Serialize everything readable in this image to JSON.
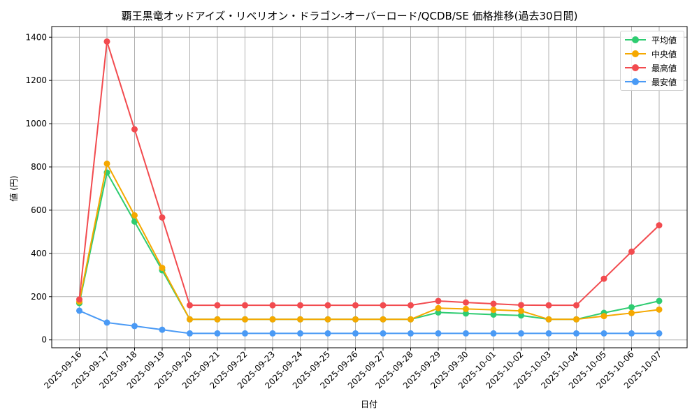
{
  "chart_data": {
    "type": "line",
    "title": "覇王黒竜オッドアイズ・リベリオン・ドラゴン-オーバーロード/QCDB/SE 価格推移(過去30日間)",
    "xlabel": "日付",
    "ylabel": "値 (円)",
    "ylim": [
      -40,
      1450
    ],
    "yticks": [
      0,
      200,
      400,
      600,
      800,
      1000,
      1200,
      1400
    ],
    "grid": true,
    "legend_position": "upper right",
    "categories": [
      "2025-09-16",
      "2025-09-17",
      "2025-09-18",
      "2025-09-19",
      "2025-09-20",
      "2025-09-21",
      "2025-09-22",
      "2025-09-23",
      "2025-09-24",
      "2025-09-25",
      "2025-09-26",
      "2025-09-27",
      "2025-09-28",
      "2025-09-29",
      "2025-09-30",
      "2025-10-01",
      "2025-10-02",
      "2025-10-03",
      "2025-10-04",
      "2025-10-05",
      "2025-10-06",
      "2025-10-07"
    ],
    "series": [
      {
        "name": "平均値",
        "color": "#2ecc71",
        "values": [
          170,
          774,
          547,
          322,
          95,
          95,
          95,
          95,
          95,
          95,
          95,
          95,
          95,
          127,
          122,
          117,
          113,
          95,
          95,
          125,
          151,
          180
        ]
      },
      {
        "name": "中央値",
        "color": "#f5a800",
        "values": [
          177,
          815,
          576,
          333,
          95,
          95,
          95,
          95,
          95,
          95,
          95,
          95,
          95,
          147,
          143,
          139,
          134,
          95,
          95,
          110,
          124,
          140
        ]
      },
      {
        "name": "最高値",
        "color": "#f24b4f",
        "values": [
          187,
          1380,
          974,
          566,
          160,
          160,
          160,
          160,
          160,
          160,
          160,
          160,
          160,
          180,
          173,
          167,
          161,
          160,
          160,
          283,
          408,
          530
        ]
      },
      {
        "name": "最安値",
        "color": "#4a9af5",
        "values": [
          135,
          80,
          64,
          47,
          30,
          30,
          30,
          30,
          30,
          30,
          30,
          30,
          30,
          30,
          30,
          30,
          30,
          30,
          30,
          30,
          30,
          30
        ]
      }
    ]
  },
  "legend": {
    "items": [
      {
        "label": "平均値",
        "color": "#2ecc71"
      },
      {
        "label": "中央値",
        "color": "#f5a800"
      },
      {
        "label": "最高値",
        "color": "#f24b4f"
      },
      {
        "label": "最安値",
        "color": "#4a9af5"
      }
    ]
  }
}
